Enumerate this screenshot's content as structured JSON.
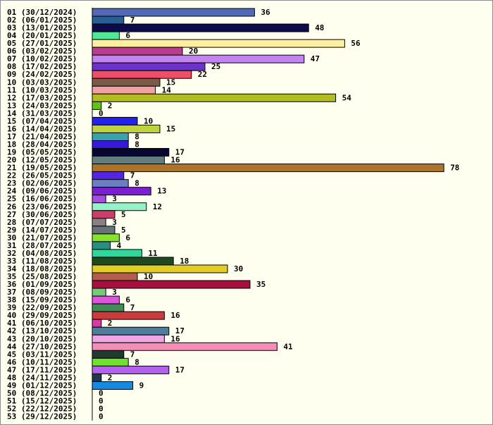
{
  "chart_data": {
    "type": "bar",
    "orientation": "horizontal",
    "title": "",
    "xlabel": "",
    "ylabel": "",
    "xlim": [
      0,
      78
    ],
    "grid": false,
    "legend": "none",
    "categories": [
      "01 (30/12/2024)",
      "02 (06/01/2025)",
      "03 (13/01/2025)",
      "04 (20/01/2025)",
      "05 (27/01/2025)",
      "06 (03/02/2025)",
      "07 (10/02/2025)",
      "08 (17/02/2025)",
      "09 (24/02/2025)",
      "10 (03/03/2025)",
      "11 (10/03/2025)",
      "12 (17/03/2025)",
      "13 (24/03/2025)",
      "14 (31/03/2025)",
      "15 (07/04/2025)",
      "16 (14/04/2025)",
      "17 (21/04/2025)",
      "18 (28/04/2025)",
      "19 (05/05/2025)",
      "20 (12/05/2025)",
      "21 (19/05/2025)",
      "22 (26/05/2025)",
      "23 (02/06/2025)",
      "24 (09/06/2025)",
      "25 (16/06/2025)",
      "26 (23/06/2025)",
      "27 (30/06/2025)",
      "28 (07/07/2025)",
      "29 (14/07/2025)",
      "30 (21/07/2025)",
      "31 (28/07/2025)",
      "32 (04/08/2025)",
      "33 (11/08/2025)",
      "34 (18/08/2025)",
      "35 (25/08/2025)",
      "36 (01/09/2025)",
      "37 (08/09/2025)",
      "38 (15/09/2025)",
      "39 (22/09/2025)",
      "40 (29/09/2025)",
      "41 (06/10/2025)",
      "42 (13/10/2025)",
      "43 (20/10/2025)",
      "44 (27/10/2025)",
      "45 (03/11/2025)",
      "46 (10/11/2025)",
      "47 (17/11/2025)",
      "48 (24/11/2025)",
      "49 (01/12/2025)",
      "50 (08/12/2025)",
      "51 (15/12/2025)",
      "52 (22/12/2025)",
      "53 (29/12/2025)"
    ],
    "values": [
      36,
      7,
      48,
      6,
      56,
      20,
      47,
      25,
      22,
      15,
      14,
      54,
      2,
      0,
      10,
      15,
      8,
      8,
      17,
      16,
      78,
      7,
      8,
      13,
      3,
      12,
      5,
      3,
      5,
      6,
      4,
      11,
      18,
      30,
      10,
      35,
      3,
      6,
      7,
      16,
      2,
      17,
      16,
      41,
      7,
      8,
      17,
      2,
      9,
      0,
      0,
      0,
      0
    ],
    "colors": [
      "#5069b8",
      "#2a5d91",
      "#0c0c4c",
      "#4fe897",
      "#fff09e",
      "#b83d8f",
      "#c383f2",
      "#6b33c7",
      "#ef4d68",
      "#7c5a4a",
      "#f2a0a0",
      "#b2bd22",
      "#63c416",
      "#777777",
      "#2222ee",
      "#bfd33f",
      "#3aa2aa",
      "#3818d8",
      "#060630",
      "#617d7d",
      "#ab7427",
      "#5425e8",
      "#6a7ec4",
      "#7c1fd4",
      "#a74be3",
      "#95f2c6",
      "#cb3d6a",
      "#8a7f86",
      "#6a7279",
      "#86e32c",
      "#2b8c84",
      "#2fd79b",
      "#1f4a1f",
      "#e2cd27",
      "#b35d4f",
      "#a80f3e",
      "#72cc7a",
      "#e052e0",
      "#3f8c56",
      "#cc3b3b",
      "#d83aa8",
      "#4f7e9c",
      "#f0a4e4",
      "#f58eb7",
      "#1f3a2f",
      "#6ee22c",
      "#b462ee",
      "#1e3850",
      "#148ae0",
      "#777777",
      "#777777",
      "#777777",
      "#777777"
    ]
  }
}
